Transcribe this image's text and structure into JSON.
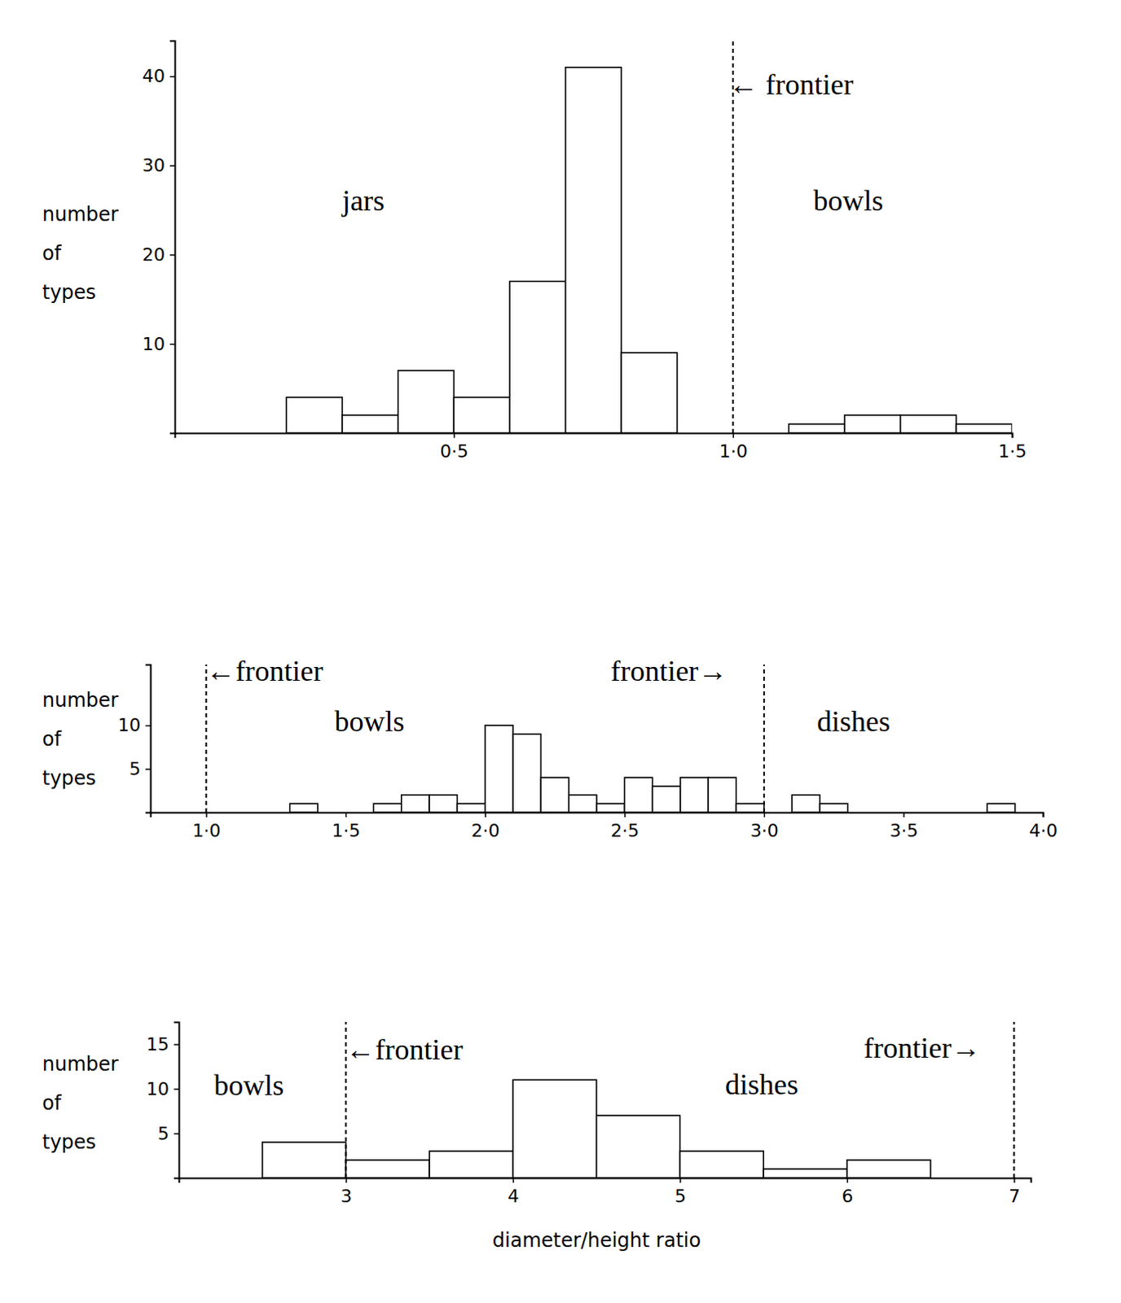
{
  "chart_data": [
    {
      "type": "histogram",
      "ylabel": "number of types",
      "bins": [
        0.2,
        0.3,
        0.4,
        0.5,
        0.6,
        0.7,
        0.8,
        0.9,
        1.0,
        1.1,
        1.2,
        1.3,
        1.4,
        1.5
      ],
      "values": [
        4,
        2,
        7,
        4,
        17,
        41,
        9,
        0,
        0,
        1,
        2,
        2,
        1
      ],
      "xlim": [
        0,
        1.5
      ],
      "ylim": [
        0,
        44
      ],
      "xticks": [
        {
          "value": 0.5,
          "label": "0·5"
        },
        {
          "value": 1.0,
          "label": "1·0"
        },
        {
          "value": 1.5,
          "label": "1·5"
        }
      ],
      "yticks": [
        10,
        20,
        30,
        40
      ],
      "frontiers": [
        1.0
      ],
      "annotations": [
        {
          "text": "jars",
          "x": 0.3,
          "y": 25
        },
        {
          "text": "← frontier",
          "x": 0.993,
          "y": 38
        },
        {
          "text": "bowls",
          "x": 1.144,
          "y": 25
        }
      ]
    },
    {
      "type": "histogram",
      "ylabel": "number of types",
      "bins": [
        1.3,
        1.4,
        1.5,
        1.6,
        1.7,
        1.8,
        1.9,
        2.0,
        2.1,
        2.2,
        2.3,
        2.4,
        2.5,
        2.6,
        2.7,
        2.8,
        2.9,
        3.0,
        3.1,
        3.2,
        3.3,
        3.4,
        3.5,
        3.6,
        3.7,
        3.8,
        3.9
      ],
      "values": [
        1,
        0,
        0,
        1,
        2,
        2,
        1,
        10,
        9,
        4,
        2,
        1,
        4,
        3,
        4,
        4,
        1,
        0,
        2,
        1,
        0,
        0,
        0,
        0,
        0,
        1
      ],
      "xlim": [
        0.8,
        4.0
      ],
      "ylim": [
        0,
        17
      ],
      "xticks": [
        {
          "value": 1.0,
          "label": "1·0"
        },
        {
          "value": 1.5,
          "label": "1·5"
        },
        {
          "value": 2.0,
          "label": "2·0"
        },
        {
          "value": 2.5,
          "label": "2·5"
        },
        {
          "value": 3.0,
          "label": "3·0"
        },
        {
          "value": 3.5,
          "label": "3·5"
        },
        {
          "value": 4.0,
          "label": "4·0"
        }
      ],
      "yticks": [
        5,
        10
      ],
      "frontiers": [
        1.0,
        3.0
      ],
      "annotations": [
        {
          "text": "←frontier",
          "x": 1.0,
          "y": 15.1
        },
        {
          "text": "bowls",
          "x": 1.46,
          "y": 9.3
        },
        {
          "text": "frontier→",
          "x": 2.45,
          "y": 15.1
        },
        {
          "text": "dishes",
          "x": 3.19,
          "y": 9.3
        }
      ]
    },
    {
      "type": "histogram",
      "ylabel": "number of types",
      "xlabel": "diameter/height ratio",
      "bins": [
        2.5,
        3.0,
        3.5,
        4.0,
        4.5,
        5.0,
        5.5,
        6.0,
        6.5
      ],
      "values": [
        4,
        2,
        3,
        11,
        7,
        3,
        1,
        2
      ],
      "xlim": [
        2,
        7.1
      ],
      "ylim": [
        0,
        17.5
      ],
      "xticks": [
        3,
        4,
        5,
        6,
        7
      ],
      "yticks": [
        5,
        10,
        15
      ],
      "frontiers": [
        3,
        7
      ],
      "annotations": [
        {
          "text": "bowls",
          "x": 2.21,
          "y": 9.3
        },
        {
          "text": "←frontier",
          "x": 3.0,
          "y": 13.3
        },
        {
          "text": "dishes",
          "x": 5.27,
          "y": 9.4
        },
        {
          "text": "frontier→",
          "x": 6.1,
          "y": 13.5
        }
      ]
    }
  ]
}
